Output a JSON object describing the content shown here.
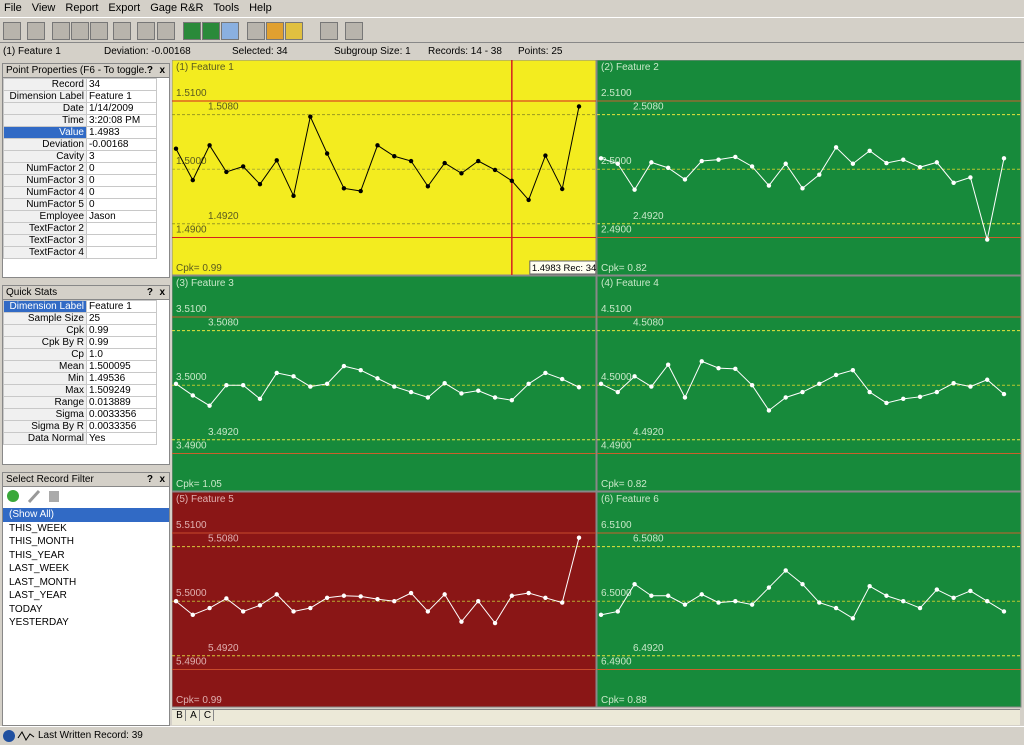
{
  "menu": [
    "File",
    "View",
    "Report",
    "Export",
    "Gage R&R",
    "Tools",
    "Help"
  ],
  "info_bar": [
    "(1) Feature  1",
    "Deviation: -0.00168",
    "Selected: 34",
    "Subgroup Size: 1",
    "Records: 14 - 38",
    "Points: 25"
  ],
  "panel_controls": [
    "?",
    "x"
  ],
  "point_properties": {
    "title": "Point Properties (F6 - To toggle...",
    "selected_row": 4,
    "rows": [
      {
        "label": "Record",
        "value": "34"
      },
      {
        "label": "Dimension Label",
        "value": "Feature  1"
      },
      {
        "label": "Date",
        "value": "1/14/2009"
      },
      {
        "label": "Time",
        "value": "3:20:08 PM"
      },
      {
        "label": "Value",
        "value": "1.4983"
      },
      {
        "label": "Deviation",
        "value": "-0.00168"
      },
      {
        "label": "Cavity",
        "value": "3"
      },
      {
        "label": "NumFactor 2",
        "value": "0"
      },
      {
        "label": "NumFactor 3",
        "value": "0"
      },
      {
        "label": "NumFactor 4",
        "value": "0"
      },
      {
        "label": "NumFactor 5",
        "value": "0"
      },
      {
        "label": "Employee",
        "value": "Jason"
      },
      {
        "label": "TextFactor 2"
      },
      {
        "label": "TextFactor 3"
      },
      {
        "label": "TextFactor 4"
      }
    ]
  },
  "quick_stats": {
    "title": "Quick Stats",
    "selected_row": 0,
    "rows": [
      {
        "label": "Dimension Label",
        "value": "Feature  1"
      },
      {
        "label": "Sample Size",
        "value": "25"
      },
      {
        "label": "Cpk",
        "value": "0.99"
      },
      {
        "label": "Cpk By R",
        "value": "0.99"
      },
      {
        "label": "Cp",
        "value": "1.0"
      },
      {
        "label": "Mean",
        "value": "1.500095"
      },
      {
        "label": "Min",
        "value": "1.49536"
      },
      {
        "label": "Max",
        "value": "1.509249"
      },
      {
        "label": "Range",
        "value": "0.013889"
      },
      {
        "label": "Sigma",
        "value": "0.0033356"
      },
      {
        "label": "Sigma By R",
        "value": "0.0033356"
      },
      {
        "label": "Data Normal",
        "value": "Yes"
      }
    ]
  },
  "record_filter": {
    "title": "Select Record Filter",
    "items": [
      "(Show All)",
      "THIS_WEEK",
      "THIS_MONTH",
      "THIS_YEAR",
      "LAST_WEEK",
      "LAST_MONTH",
      "LAST_YEAR",
      "TODAY",
      "YESTERDAY"
    ]
  },
  "charts": [
    {
      "type": "line",
      "title": "(1) Feature  1",
      "background": "#f3ec1f",
      "title_color": "#5a5a20",
      "line_color": "#000000",
      "ylim": [
        1.4845,
        1.516
      ],
      "cpk": "Cpk= 0.99",
      "limits": [
        {
          "value": 1.51,
          "label": "1.5100",
          "color": "#d42020"
        },
        {
          "value": 1.508,
          "label": "1.5080",
          "color": "#9a9a20",
          "dash": true
        },
        {
          "value": 1.5,
          "label": "1.5000",
          "color": "#b0b030",
          "dash": true
        },
        {
          "value": 1.492,
          "label": "1.4920",
          "color": "#9a9a20",
          "dash": true
        },
        {
          "value": 1.49,
          "label": "1.4900",
          "color": "#d42020"
        }
      ],
      "values": [
        1.503,
        1.4984,
        1.5035,
        1.4996,
        1.5004,
        1.4978,
        1.5013,
        1.4961,
        1.5077,
        1.5023,
        1.4972,
        1.4968,
        1.5035,
        1.5019,
        1.5012,
        1.4975,
        1.5009,
        1.4994,
        1.5012,
        1.4999,
        1.4983,
        1.4955,
        1.502,
        1.4971,
        1.5092
      ],
      "tooltip": "1.4983 Rec: 34"
    },
    {
      "type": "line",
      "title": "(2) Feature  2",
      "background": "#178a3b",
      "title_color": "#c8e8c8",
      "line_color": "#ffffff",
      "ylim": [
        2.4845,
        2.516
      ],
      "cpk": "Cpk= 0.82",
      "limits": [
        {
          "value": 2.51,
          "label": "2.5100",
          "color": "#c8602c"
        },
        {
          "value": 2.508,
          "label": "2.5080",
          "color": "#e6e63c",
          "dash": true
        },
        {
          "value": 2.5,
          "label": "2.5000",
          "color": "#b8c830",
          "dash": true
        },
        {
          "value": 2.492,
          "label": "2.4920",
          "color": "#e6e63c",
          "dash": true
        },
        {
          "value": 2.49,
          "label": "2.4900",
          "color": "#c8602c"
        }
      ],
      "values": [
        2.5016,
        2.5008,
        2.497,
        2.501,
        2.5002,
        2.4985,
        2.5012,
        2.5014,
        2.5018,
        2.5004,
        2.4976,
        2.5008,
        2.4972,
        2.4992,
        2.5032,
        2.5008,
        2.5027,
        2.5009,
        2.5014,
        2.5003,
        2.501,
        2.498,
        2.4988,
        2.4897,
        2.5016
      ]
    },
    {
      "type": "line",
      "title": "(3) Feature  3",
      "background": "#178a3b",
      "title_color": "#c8e8c8",
      "line_color": "#ffffff",
      "ylim": [
        3.4845,
        3.516
      ],
      "cpk": "Cpk= 1.05",
      "limits": [
        {
          "value": 3.51,
          "label": "3.5100",
          "color": "#c8602c"
        },
        {
          "value": 3.508,
          "label": "3.5080",
          "color": "#e6e63c",
          "dash": true
        },
        {
          "value": 3.5,
          "label": "3.5000",
          "color": "#b8c830",
          "dash": true
        },
        {
          "value": 3.492,
          "label": "3.4920",
          "color": "#e6e63c",
          "dash": true
        },
        {
          "value": 3.49,
          "label": "3.4900",
          "color": "#c8602c"
        }
      ],
      "values": [
        3.5002,
        3.4985,
        3.497,
        3.5,
        3.5,
        3.498,
        3.5018,
        3.5013,
        3.4998,
        3.5002,
        3.5028,
        3.5022,
        3.501,
        3.4998,
        3.499,
        3.4982,
        3.5003,
        3.4988,
        3.4992,
        3.4982,
        3.4978,
        3.5002,
        3.5018,
        3.5009,
        3.4997
      ]
    },
    {
      "type": "line",
      "title": "(4) Feature  4",
      "background": "#178a3b",
      "title_color": "#c8e8c8",
      "line_color": "#ffffff",
      "ylim": [
        4.4845,
        4.516
      ],
      "cpk": "Cpk= 0.82",
      "limits": [
        {
          "value": 4.51,
          "label": "4.5100",
          "color": "#c8602c"
        },
        {
          "value": 4.508,
          "label": "4.5080",
          "color": "#e6e63c",
          "dash": true
        },
        {
          "value": 4.5,
          "label": "4.5000",
          "color": "#b8c830",
          "dash": true
        },
        {
          "value": 4.492,
          "label": "4.4920",
          "color": "#e6e63c",
          "dash": true
        },
        {
          "value": 4.49,
          "label": "4.4900",
          "color": "#c8602c"
        }
      ],
      "values": [
        4.5002,
        4.499,
        4.5013,
        4.4998,
        4.503,
        4.4982,
        4.5035,
        4.5025,
        4.5024,
        4.5,
        4.4963,
        4.4982,
        4.499,
        4.5002,
        4.5015,
        4.5022,
        4.499,
        4.4974,
        4.498,
        4.4983,
        4.499,
        4.5003,
        4.4998,
        4.5008,
        4.4987
      ]
    },
    {
      "type": "line",
      "title": "(5) Feature  5",
      "background": "#8a1616",
      "title_color": "#e0b0b0",
      "line_color": "#ffffff",
      "ylim": [
        5.4845,
        5.516
      ],
      "cpk": "Cpk= 0.99",
      "limits": [
        {
          "value": 5.51,
          "label": "5.5100",
          "color": "#c84a2c"
        },
        {
          "value": 5.508,
          "label": "5.5080",
          "color": "#d8c83c",
          "dash": true
        },
        {
          "value": 5.5,
          "label": "5.5000",
          "color": "#b8a830",
          "dash": true
        },
        {
          "value": 5.492,
          "label": "5.4920",
          "color": "#d8c83c",
          "dash": true
        },
        {
          "value": 5.49,
          "label": "5.4900",
          "color": "#c84a2c"
        }
      ],
      "values": [
        5.5,
        5.498,
        5.499,
        5.5004,
        5.4985,
        5.4994,
        5.501,
        5.4985,
        5.499,
        5.5005,
        5.5008,
        5.5007,
        5.5003,
        5.5,
        5.5012,
        5.4985,
        5.501,
        5.497,
        5.5,
        5.4968,
        5.5008,
        5.5012,
        5.5005,
        5.4998,
        5.5093
      ]
    },
    {
      "type": "line",
      "title": "(6) Feature  6",
      "background": "#178a3b",
      "title_color": "#c8e8c8",
      "line_color": "#ffffff",
      "ylim": [
        6.4845,
        6.516
      ],
      "cpk": "Cpk= 0.88",
      "limits": [
        {
          "value": 6.51,
          "label": "6.5100",
          "color": "#c8602c"
        },
        {
          "value": 6.508,
          "label": "6.5080",
          "color": "#e6e63c",
          "dash": true
        },
        {
          "value": 6.5,
          "label": "6.5000",
          "color": "#b8c830",
          "dash": true
        },
        {
          "value": 6.492,
          "label": "6.4920",
          "color": "#e6e63c",
          "dash": true
        },
        {
          "value": 6.49,
          "label": "6.4900",
          "color": "#c8602c"
        }
      ],
      "values": [
        6.498,
        6.4985,
        6.5025,
        6.5008,
        6.5008,
        6.4995,
        6.501,
        6.4998,
        6.5,
        6.4995,
        6.502,
        6.5045,
        6.5025,
        6.4998,
        6.499,
        6.4975,
        6.5022,
        6.5008,
        6.5,
        6.499,
        6.5017,
        6.5005,
        6.5015,
        6.5,
        6.4985
      ]
    }
  ],
  "tabs": [
    "B",
    "A",
    "C"
  ],
  "status": "Last Written Record: 39"
}
